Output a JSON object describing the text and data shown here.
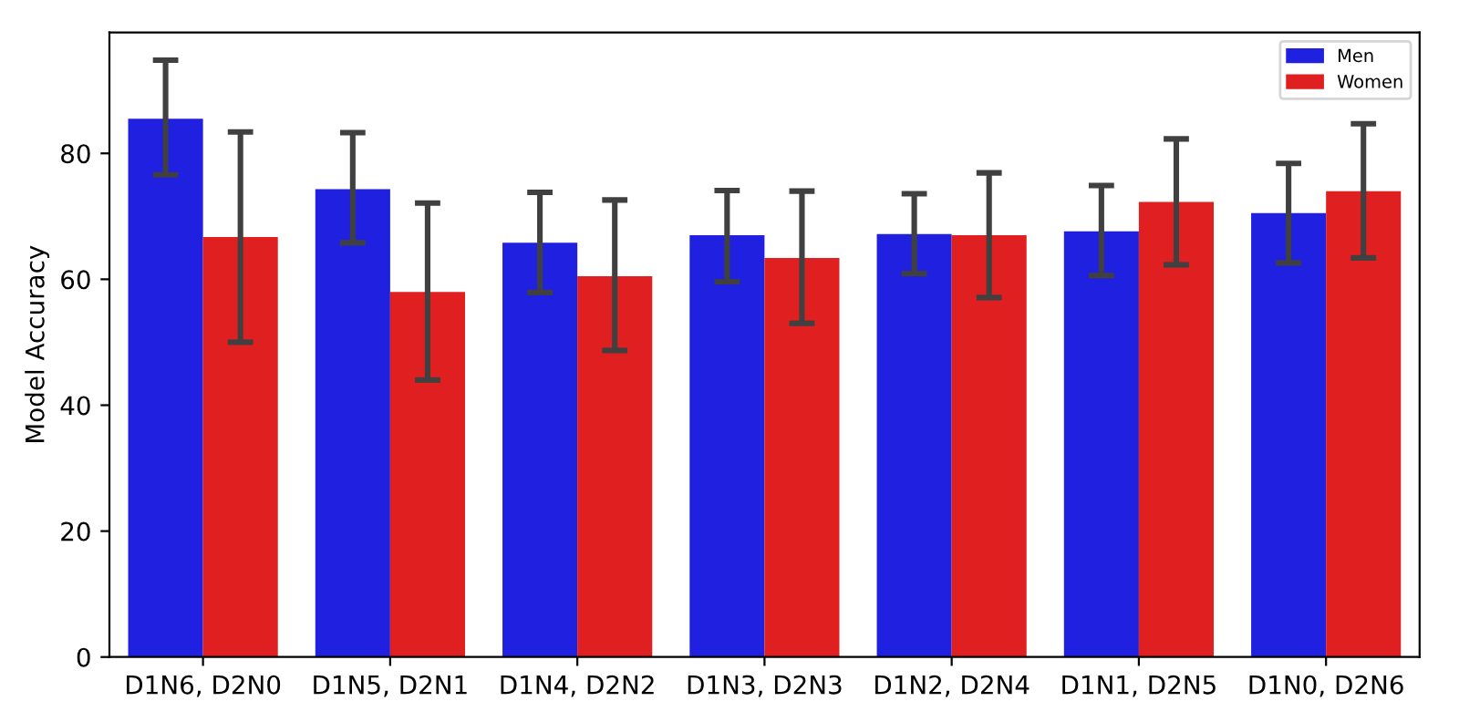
{
  "chart_data": {
    "type": "bar",
    "ylabel": "Model Accuracy",
    "categories": [
      "D1N6, D2N0",
      "D1N5, D2N1",
      "D1N4, D2N2",
      "D1N3, D2N3",
      "D1N2, D2N4",
      "D1N1, D2N5",
      "D1N0, D2N6"
    ],
    "series": [
      {
        "name": "Men",
        "color": "#2020e0",
        "values": [
          85.5,
          74.3,
          65.8,
          67.0,
          67.2,
          67.6,
          70.5
        ],
        "errors": [
          [
            76.6,
            94.8
          ],
          [
            65.8,
            83.3
          ],
          [
            57.9,
            73.8
          ],
          [
            59.6,
            74.1
          ],
          [
            60.9,
            73.6
          ],
          [
            60.6,
            74.9
          ],
          [
            62.6,
            78.4
          ]
        ]
      },
      {
        "name": "Women",
        "color": "#e02020",
        "values": [
          66.7,
          58.0,
          60.5,
          63.4,
          67.0,
          72.3,
          74.0
        ],
        "errors": [
          [
            50.0,
            83.4
          ],
          [
            44.0,
            72.1
          ],
          [
            48.7,
            72.6
          ],
          [
            53.0,
            74.0
          ],
          [
            57.1,
            76.9
          ],
          [
            62.3,
            82.3
          ],
          [
            63.4,
            84.7
          ]
        ]
      }
    ],
    "ylim": [
      0,
      99.2
    ],
    "yticks": [
      0,
      20,
      40,
      60,
      80
    ],
    "grid": false,
    "legend": "top right"
  }
}
